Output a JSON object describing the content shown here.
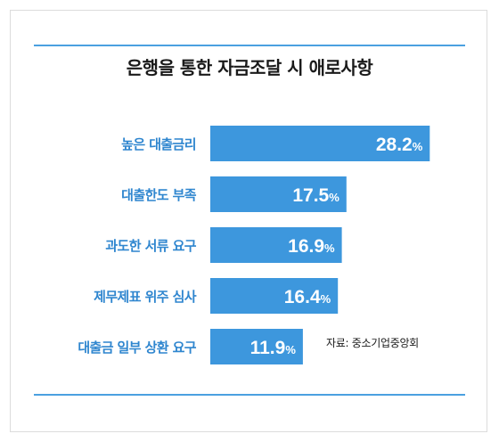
{
  "chart_data": {
    "type": "bar",
    "orientation": "horizontal",
    "title": "은행을 통한 자금조달 시 애로사항",
    "categories": [
      "높은 대출금리",
      "대출한도 부족",
      "과도한 서류 요구",
      "제무제표 위주 심사",
      "대출금 일부 상환 요구"
    ],
    "values": [
      28.2,
      17.5,
      16.9,
      16.4,
      11.9
    ],
    "value_unit": "%",
    "xlim": [
      0,
      30
    ],
    "grid": false,
    "legend": "none",
    "source": "자료: 중소기업중앙회"
  },
  "colors": {
    "bar": "#3d97dd",
    "category_text": "#2f86cf",
    "value_text": "#ffffff",
    "rule": "#4aa0e0"
  }
}
